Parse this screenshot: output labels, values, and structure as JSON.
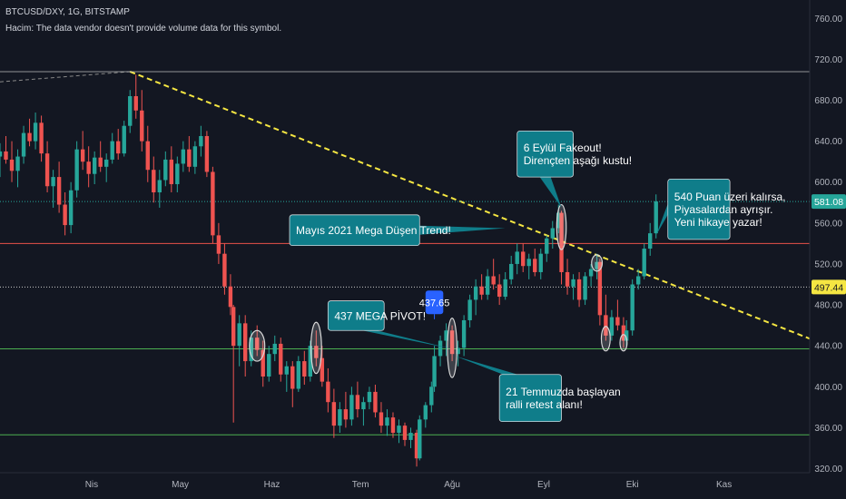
{
  "header": {
    "symbol_line": "BTCUSD/DXY, 1G, BITSTAMP",
    "volume_note": "Hacim: The data vendor doesn't provide volume data for this symbol."
  },
  "colors": {
    "background": "#131722",
    "up": "#26a69a",
    "down": "#ef5350",
    "trendline": "#f5e642",
    "resistance": "#e8524a",
    "support": "#4caf50",
    "callout": "#0f7d8a",
    "price_badge": "#2962ff"
  },
  "chart_data": {
    "type": "candlestick",
    "title": "BTCUSD/DXY, 1G, BITSTAMP",
    "x_ticks": [
      "Nis",
      "May",
      "Haz",
      "Tem",
      "Ağu",
      "Eyl",
      "Eki",
      "Kas"
    ],
    "y_ticks": [
      320,
      360,
      400,
      440,
      480,
      520,
      560,
      600,
      640,
      680,
      720,
      760
    ],
    "ylim": [
      316,
      778
    ],
    "x_ticks_start": "2021-04-01",
    "x_range": [
      "2021-03-01",
      "2021-11-30"
    ],
    "grid": false,
    "price_labels": [
      {
        "value": 581.08,
        "label": "581.08",
        "color": "#26a69a"
      },
      {
        "value": 497.44,
        "label": "497.44",
        "color": "#f5e642"
      }
    ],
    "candles": [
      [
        "2021-03-01",
        625,
        638,
        605,
        630
      ],
      [
        "2021-03-03",
        630,
        645,
        618,
        622
      ],
      [
        "2021-03-05",
        622,
        640,
        600,
        611
      ],
      [
        "2021-03-07",
        611,
        632,
        595,
        625
      ],
      [
        "2021-03-09",
        625,
        655,
        618,
        648
      ],
      [
        "2021-03-11",
        648,
        662,
        635,
        640
      ],
      [
        "2021-03-13",
        640,
        668,
        632,
        658
      ],
      [
        "2021-03-15",
        658,
        665,
        620,
        628
      ],
      [
        "2021-03-17",
        628,
        640,
        590,
        596
      ],
      [
        "2021-03-19",
        596,
        612,
        575,
        605
      ],
      [
        "2021-03-21",
        605,
        620,
        570,
        578
      ],
      [
        "2021-03-23",
        578,
        590,
        548,
        558
      ],
      [
        "2021-03-25",
        558,
        600,
        550,
        592
      ],
      [
        "2021-03-27",
        592,
        640,
        585,
        632
      ],
      [
        "2021-03-29",
        632,
        650,
        612,
        620
      ],
      [
        "2021-03-31",
        620,
        635,
        595,
        608
      ],
      [
        "2021-04-02",
        608,
        630,
        598,
        624
      ],
      [
        "2021-04-04",
        624,
        640,
        610,
        615
      ],
      [
        "2021-04-06",
        615,
        628,
        600,
        622
      ],
      [
        "2021-04-08",
        622,
        648,
        618,
        640
      ],
      [
        "2021-04-10",
        640,
        652,
        622,
        628
      ],
      [
        "2021-04-12",
        628,
        660,
        625,
        655
      ],
      [
        "2021-04-14",
        655,
        690,
        648,
        684
      ],
      [
        "2021-04-16",
        684,
        705,
        662,
        670
      ],
      [
        "2021-04-18",
        670,
        690,
        630,
        640
      ],
      [
        "2021-04-20",
        640,
        655,
        600,
        612
      ],
      [
        "2021-04-22",
        612,
        625,
        580,
        590
      ],
      [
        "2021-04-24",
        590,
        612,
        575,
        602
      ],
      [
        "2021-04-26",
        602,
        630,
        596,
        622
      ],
      [
        "2021-04-28",
        622,
        635,
        590,
        598
      ],
      [
        "2021-04-30",
        598,
        625,
        590,
        618
      ],
      [
        "2021-05-02",
        618,
        640,
        610,
        632
      ],
      [
        "2021-05-04",
        632,
        645,
        610,
        615
      ],
      [
        "2021-05-06",
        615,
        640,
        608,
        635
      ],
      [
        "2021-05-08",
        635,
        655,
        625,
        645
      ],
      [
        "2021-05-10",
        645,
        650,
        605,
        610
      ],
      [
        "2021-05-12",
        610,
        615,
        540,
        548
      ],
      [
        "2021-05-14",
        548,
        560,
        520,
        530
      ],
      [
        "2021-05-16",
        530,
        540,
        490,
        498
      ],
      [
        "2021-05-18",
        498,
        510,
        470,
        478
      ],
      [
        "2021-05-19",
        478,
        480,
        365,
        440
      ],
      [
        "2021-05-21",
        440,
        470,
        420,
        462
      ],
      [
        "2021-05-23",
        462,
        470,
        410,
        425
      ],
      [
        "2021-05-25",
        425,
        455,
        420,
        448
      ],
      [
        "2021-05-27",
        448,
        460,
        430,
        436
      ],
      [
        "2021-05-29",
        436,
        445,
        400,
        410
      ],
      [
        "2021-05-31",
        410,
        440,
        405,
        432
      ],
      [
        "2021-06-02",
        432,
        450,
        425,
        442
      ],
      [
        "2021-06-04",
        442,
        448,
        405,
        412
      ],
      [
        "2021-06-06",
        412,
        425,
        395,
        420
      ],
      [
        "2021-06-08",
        420,
        425,
        380,
        398
      ],
      [
        "2021-06-10",
        398,
        430,
        395,
        425
      ],
      [
        "2021-06-12",
        425,
        435,
        402,
        410
      ],
      [
        "2021-06-14",
        410,
        445,
        405,
        440
      ],
      [
        "2021-06-16",
        440,
        455,
        420,
        428
      ],
      [
        "2021-06-18",
        428,
        440,
        400,
        405
      ],
      [
        "2021-06-20",
        405,
        418,
        375,
        385
      ],
      [
        "2021-06-22",
        385,
        398,
        350,
        362
      ],
      [
        "2021-06-24",
        362,
        385,
        355,
        378
      ],
      [
        "2021-06-26",
        378,
        395,
        360,
        368
      ],
      [
        "2021-06-28",
        368,
        400,
        362,
        392
      ],
      [
        "2021-06-30",
        392,
        405,
        370,
        378
      ],
      [
        "2021-07-02",
        378,
        390,
        362,
        385
      ],
      [
        "2021-07-04",
        385,
        400,
        378,
        395
      ],
      [
        "2021-07-06",
        395,
        402,
        370,
        375
      ],
      [
        "2021-07-08",
        375,
        385,
        355,
        362
      ],
      [
        "2021-07-10",
        362,
        378,
        352,
        370
      ],
      [
        "2021-07-12",
        370,
        375,
        350,
        355
      ],
      [
        "2021-07-14",
        355,
        368,
        345,
        362
      ],
      [
        "2021-07-16",
        362,
        365,
        342,
        348
      ],
      [
        "2021-07-18",
        348,
        360,
        340,
        355
      ],
      [
        "2021-07-20",
        355,
        358,
        322,
        330
      ],
      [
        "2021-07-21",
        330,
        372,
        328,
        368
      ],
      [
        "2021-07-23",
        368,
        385,
        360,
        382
      ],
      [
        "2021-07-25",
        382,
        405,
        375,
        400
      ],
      [
        "2021-07-26",
        400,
        440,
        395,
        430
      ],
      [
        "2021-07-28",
        430,
        450,
        420,
        445
      ],
      [
        "2021-07-30",
        445,
        462,
        430,
        455
      ],
      [
        "2021-08-01",
        455,
        460,
        425,
        432
      ],
      [
        "2021-08-03",
        432,
        445,
        420,
        438
      ],
      [
        "2021-08-05",
        438,
        470,
        430,
        465
      ],
      [
        "2021-08-07",
        465,
        490,
        458,
        485
      ],
      [
        "2021-08-09",
        485,
        505,
        470,
        498
      ],
      [
        "2021-08-11",
        498,
        510,
        485,
        490
      ],
      [
        "2021-08-13",
        490,
        515,
        485,
        508
      ],
      [
        "2021-08-15",
        508,
        525,
        495,
        500
      ],
      [
        "2021-08-17",
        500,
        510,
        480,
        488
      ],
      [
        "2021-08-19",
        488,
        512,
        485,
        505
      ],
      [
        "2021-08-21",
        505,
        528,
        500,
        520
      ],
      [
        "2021-08-23",
        520,
        540,
        510,
        532
      ],
      [
        "2021-08-25",
        532,
        540,
        512,
        518
      ],
      [
        "2021-08-27",
        518,
        530,
        505,
        525
      ],
      [
        "2021-08-29",
        525,
        535,
        508,
        512
      ],
      [
        "2021-08-31",
        512,
        535,
        505,
        530
      ],
      [
        "2021-09-02",
        530,
        548,
        522,
        545
      ],
      [
        "2021-09-04",
        545,
        562,
        535,
        555
      ],
      [
        "2021-09-06",
        555,
        578,
        550,
        570
      ],
      [
        "2021-09-07",
        570,
        572,
        500,
        512
      ],
      [
        "2021-09-09",
        512,
        525,
        490,
        498
      ],
      [
        "2021-09-11",
        498,
        510,
        485,
        505
      ],
      [
        "2021-09-13",
        505,
        512,
        478,
        485
      ],
      [
        "2021-09-15",
        485,
        512,
        480,
        508
      ],
      [
        "2021-09-17",
        508,
        520,
        498,
        515
      ],
      [
        "2021-09-19",
        515,
        530,
        505,
        522
      ],
      [
        "2021-09-20",
        522,
        525,
        460,
        470
      ],
      [
        "2021-09-22",
        470,
        490,
        445,
        450
      ],
      [
        "2021-09-24",
        450,
        475,
        445,
        468
      ],
      [
        "2021-09-26",
        468,
        485,
        455,
        460
      ],
      [
        "2021-09-28",
        460,
        468,
        438,
        445
      ],
      [
        "2021-09-29",
        445,
        465,
        440,
        455
      ],
      [
        "2021-10-01",
        455,
        505,
        450,
        500
      ],
      [
        "2021-10-03",
        500,
        515,
        495,
        508
      ],
      [
        "2021-10-05",
        508,
        540,
        505,
        535
      ],
      [
        "2021-10-07",
        535,
        560,
        528,
        550
      ],
      [
        "2021-10-09",
        550,
        588,
        545,
        581.08
      ]
    ],
    "lines": [
      {
        "name": "trendline",
        "style": "dashed",
        "color": "#f5e642",
        "from": [
          "2021-04-14",
          708
        ],
        "to": [
          "2021-11-30",
          447
        ]
      },
      {
        "name": "prior-trend",
        "style": "dashed",
        "color": "#888888",
        "from": [
          "2021-03-01",
          698
        ],
        "to": [
          "2021-04-14",
          708
        ]
      },
      {
        "name": "top-line",
        "style": "solid",
        "color": "#c9c9c9",
        "value": 708
      },
      {
        "name": "resistance-540",
        "style": "solid",
        "color": "#e8524a",
        "value": 540
      },
      {
        "name": "level-497",
        "style": "dotted",
        "color": "#c9c9c9",
        "value": 497.44
      },
      {
        "name": "support-437",
        "style": "solid",
        "color": "#4caf50",
        "value": 437
      },
      {
        "name": "support-353",
        "style": "solid",
        "color": "#4caf50",
        "value": 353
      },
      {
        "name": "last-price",
        "style": "dotted",
        "color": "#26a69a",
        "value": 581.08
      }
    ],
    "ellipses": [
      {
        "name": "pivot-may-ellipse",
        "x": "2021-05-27",
        "y": 440,
        "rx_days": 2.6,
        "ry": 15
      },
      {
        "name": "pivot-june-ellipse",
        "x": "2021-06-16",
        "y": 438,
        "rx_days": 1.8,
        "ry": 25
      },
      {
        "name": "pivot-aug-ellipse",
        "x": "2021-08-01",
        "y": 438,
        "rx_days": 1.6,
        "ry": 29
      },
      {
        "name": "fakeout-ellipse",
        "x": "2021-09-07",
        "y": 556,
        "rx_days": 1.6,
        "ry": 22
      },
      {
        "name": "retest-ellipse",
        "x": "2021-09-19",
        "y": 521,
        "rx_days": 1.8,
        "ry": 8
      },
      {
        "name": "double-bottom-1-ellipse",
        "x": "2021-09-22",
        "y": 447,
        "rx_days": 1.5,
        "ry": 12
      },
      {
        "name": "double-bottom-2-ellipse",
        "x": "2021-09-28",
        "y": 443,
        "rx_days": 1.2,
        "ry": 8
      }
    ],
    "annotations": [
      {
        "name": "callout-mayis",
        "text": "Mayıs 2021 Mega Düşen Trend!",
        "box": [
          "2021-06-07",
          568,
          "2021-07-21",
          538
        ],
        "pointer": [
          "2021-08-19",
          555
        ],
        "anchor": "right",
        "kind": "callout"
      },
      {
        "name": "callout-pivot",
        "text": "437 MEGA PİVOT!",
        "box": [
          "2021-06-20",
          484,
          "2021-07-09",
          455
        ],
        "pointer": [
          "2021-08-01",
          437
        ],
        "anchor": "bottom-right",
        "kind": "callout"
      },
      {
        "name": "callout-eylul",
        "text": "6 Eylül Fakeout!\nDirençten aşağı kustu!",
        "box": [
          "2021-08-23",
          650,
          "2021-09-11",
          605
        ],
        "pointer": [
          "2021-09-07",
          575
        ],
        "anchor": "bottom",
        "kind": "callout"
      },
      {
        "name": "callout-temmuz",
        "text": "21 Temmuzda başlayan\nralli retest alanı!",
        "box": [
          "2021-08-17",
          412,
          "2021-09-07",
          366
        ],
        "pointer": [
          "2021-08-02",
          430
        ],
        "anchor": "top-left",
        "kind": "callout"
      },
      {
        "name": "callout-540",
        "text": "540 Puan üzeri kalırsa,\nPiyasalardan ayrışır.\nYeni hikaye yazar!",
        "box": [
          "2021-10-13",
          603,
          "2021-11-03",
          544
        ],
        "pointer": [
          "2021-10-09",
          548
        ],
        "anchor": "left",
        "kind": "callout"
      },
      {
        "name": "badge-437-65",
        "text": "437.65",
        "box": [
          "2021-07-23",
          494,
          "2021-07-29",
          471
        ],
        "pointer": [
          "2021-07-26",
          466
        ],
        "anchor": "bottom",
        "kind": "badge"
      }
    ]
  }
}
